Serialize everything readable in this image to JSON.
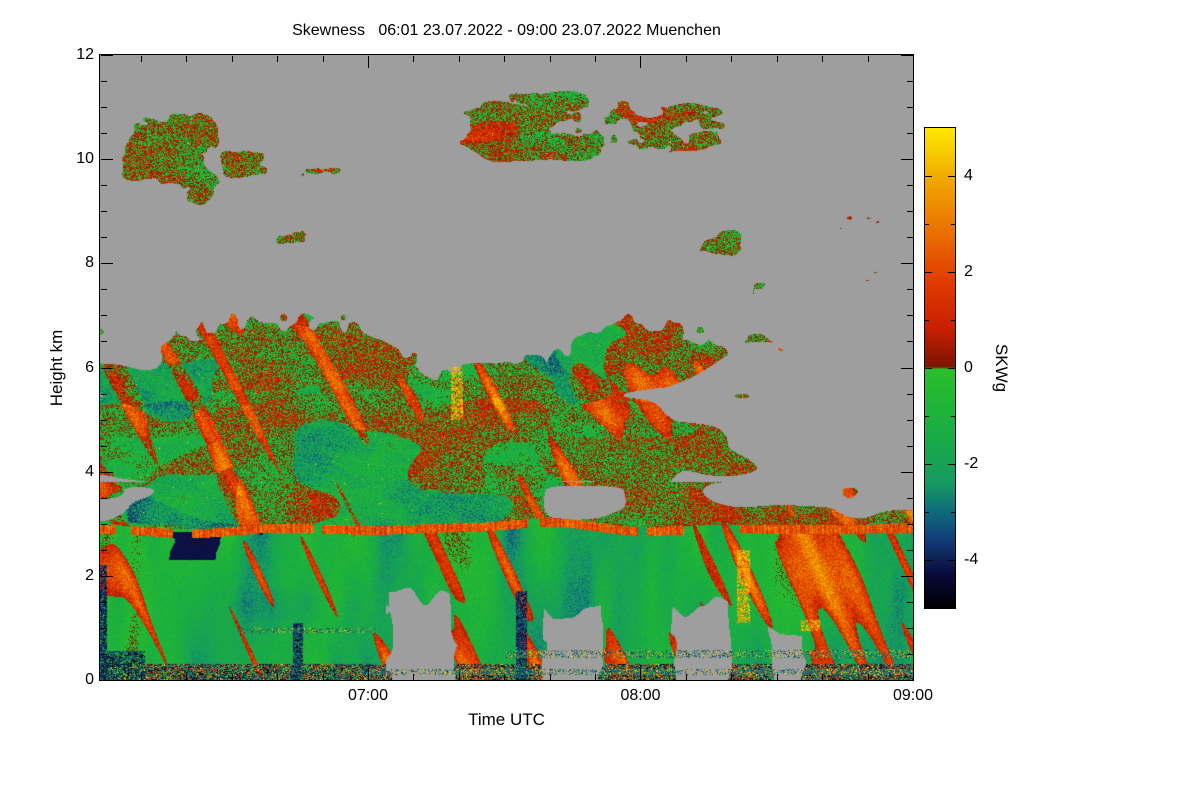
{
  "chart_data": {
    "type": "heatmap",
    "title": "Skewness   06:01 23.07.2022 - 09:00 23.07.2022 Muenchen",
    "xlabel": "Time UTC",
    "ylabel": "Height km",
    "colorbar_label": "SKWg",
    "x_start_label": "06:01",
    "x_end_label": "09:00",
    "x_range_minutes": [
      361,
      540
    ],
    "x_major_ticks": [
      {
        "minute": 420,
        "label": "07:00"
      },
      {
        "minute": 480,
        "label": "08:00"
      },
      {
        "minute": 540,
        "label": "09:00"
      }
    ],
    "x_minor_step_minutes": 10,
    "y_range_km": [
      0,
      12
    ],
    "y_major_ticks": [
      0,
      2,
      4,
      6,
      8,
      10,
      12
    ],
    "y_minor_step_km": 0.5,
    "value_range": [
      -5,
      5
    ],
    "colorbar_major_ticks": [
      4,
      2,
      0,
      -2,
      -4
    ],
    "colorbar_minor_ticks": [
      3,
      1,
      -1,
      -3
    ],
    "no_data_color": "#9e9e9e",
    "frame_color": "#000000",
    "background_color": "#ffffff",
    "colormap_stops": [
      [
        -5.0,
        "#000000"
      ],
      [
        -4.3,
        "#0a0a3c"
      ],
      [
        -3.6,
        "#123c78"
      ],
      [
        -3.0,
        "#0f6b7d"
      ],
      [
        -2.4,
        "#169a62"
      ],
      [
        -1.6,
        "#18a94a"
      ],
      [
        -0.8,
        "#1fb437"
      ],
      [
        -0.03,
        "#2bbf2b"
      ],
      [
        0.03,
        "#7c1400"
      ],
      [
        0.8,
        "#c81e00"
      ],
      [
        1.8,
        "#e03c00"
      ],
      [
        2.8,
        "#ea6f00"
      ],
      [
        3.8,
        "#f0a000"
      ],
      [
        4.5,
        "#f7cc00"
      ],
      [
        5.0,
        "#ffe800"
      ]
    ],
    "field": {
      "bl_top_km": 3.0,
      "bl_top_wiggle_km": 0.12,
      "cloud_top_mean_km": 6.4,
      "cloud_top_var_km": 0.9,
      "cloud_top_right_drop_km": 1.5,
      "surface_speckle_top_km": 0.3,
      "upper_patches": [
        [
          0.0,
          0.17,
          8.6,
          11.6,
          0.4,
          201
        ],
        [
          0.055,
          0.135,
          9.2,
          10.7,
          0.42,
          202
        ],
        [
          0.13,
          0.225,
          9.4,
          10.4,
          0.46,
          203
        ],
        [
          0.225,
          0.32,
          9.4,
          10.0,
          0.5,
          204
        ],
        [
          0.205,
          0.265,
          8.2,
          8.9,
          0.52,
          205
        ],
        [
          0.36,
          0.85,
          9.7,
          11.45,
          0.34,
          206
        ],
        [
          0.47,
          0.62,
          10.8,
          11.45,
          0.36,
          207
        ],
        [
          0.72,
          0.8,
          8.0,
          8.8,
          0.46,
          208
        ],
        [
          0.79,
          0.845,
          7.2,
          7.8,
          0.52,
          209
        ],
        [
          0.845,
          0.995,
          8.2,
          9.2,
          0.42,
          210
        ],
        [
          0.9,
          0.99,
          7.5,
          8.0,
          0.54,
          211
        ]
      ],
      "bl_gray_wedges": [
        [
          0.355,
          0.435,
          1.6
        ],
        [
          0.545,
          0.615,
          1.25
        ],
        [
          0.705,
          0.775,
          1.5
        ],
        [
          0.825,
          0.865,
          0.9
        ]
      ],
      "dark_streaks": [
        [
          0.0,
          0.008,
          2.2
        ],
        [
          0.238,
          0.25,
          1.1
        ],
        [
          0.512,
          0.525,
          1.7
        ]
      ],
      "hot_streaks": [
        [
          0.432,
          0.447,
          5.0,
          6.0
        ],
        [
          0.783,
          0.8,
          1.1,
          2.5
        ],
        [
          0.862,
          0.885,
          0.95,
          1.15
        ]
      ],
      "dotted_rows": [
        [
          0.5,
          1.0,
          0.5,
          0.07
        ],
        [
          0.33,
          1.0,
          0.16,
          0.06
        ],
        [
          0.17,
          0.34,
          0.95,
          0.05
        ]
      ]
    },
    "description": "Time-height plot of vertical-velocity skewness (SKWg) over Muenchen, 06:01-09:00 UTC 23.07.2022. Gray = no data. Convective boundary layer below ~3 km dominated by negative skewness (green/teal) coherent plumes with tilted positive (red) updraft streaks and a positive red band at ~3 km; mixed near-zero skewness (olive speckle of red/green) cloud and aerosol layer from 3 km up to 5.5-7.5 km with red filaments and gray gaps (more gaps after ~08:20); broken mid/high cloud patches of near-zero skewness at 7.5-11.5 km; dark surface-clutter speckle below 0.3 km."
  }
}
